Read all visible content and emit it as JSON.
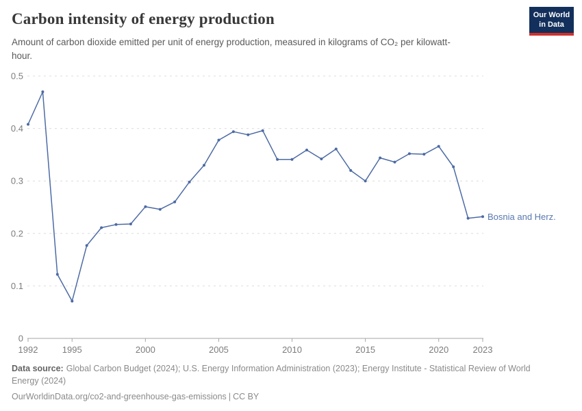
{
  "header": {
    "title": "Carbon intensity of energy production",
    "subtitle": "Amount of carbon dioxide emitted per unit of energy production, measured in kilograms of CO₂ per kilowatt-hour.",
    "logo": {
      "line1": "Our World",
      "line2": "in Data"
    }
  },
  "chart_data": {
    "type": "line",
    "title": "Carbon intensity of energy production",
    "xlabel": "",
    "ylabel": "kilograms of CO₂ per kilowatt-hour",
    "xlim": [
      1992,
      2023
    ],
    "ylim": [
      0,
      0.5
    ],
    "grid": "horizontal dashed",
    "legend_position": "end-of-line label",
    "xticks": [
      1992,
      1995,
      2000,
      2005,
      2010,
      2015,
      2020,
      2023
    ],
    "yticks": [
      0,
      0.1,
      0.2,
      0.3,
      0.4,
      0.5
    ],
    "ytick_labels": [
      "0",
      "0.1",
      "0.2",
      "0.3",
      "0.4",
      "0.5"
    ],
    "series": [
      {
        "name": "Bosnia and Herz.",
        "color": "#4c6aa4",
        "x": [
          1992,
          1993,
          1994,
          1995,
          1996,
          1997,
          1998,
          1999,
          2000,
          2001,
          2002,
          2003,
          2004,
          2005,
          2006,
          2007,
          2008,
          2009,
          2010,
          2011,
          2012,
          2013,
          2014,
          2015,
          2016,
          2017,
          2018,
          2019,
          2020,
          2021,
          2022,
          2023
        ],
        "values": [
          0.408,
          0.47,
          0.122,
          0.071,
          0.177,
          0.211,
          0.217,
          0.218,
          0.251,
          0.246,
          0.26,
          0.298,
          0.33,
          0.378,
          0.394,
          0.388,
          0.396,
          0.341,
          0.341,
          0.359,
          0.342,
          0.361,
          0.32,
          0.3,
          0.344,
          0.336,
          0.352,
          0.351,
          0.366,
          0.327,
          0.229,
          0.232
        ]
      }
    ]
  },
  "colors": {
    "line": "#4c6aa4",
    "series_label": "#5878b0",
    "grid": "#dcdcdc",
    "axis_line": "#a6a6a6",
    "axis_text": "#7c7c7c",
    "logo_navy": "#12305b",
    "logo_red": "#d0312d"
  },
  "footer": {
    "source_label": "Data source:",
    "sources": "Global Carbon Budget (2024); U.S. Energy Information Administration (2023); Energy Institute - Statistical Review of World Energy (2024)",
    "url": "OurWorldinData.org/co2-and-greenhouse-gas-emissions",
    "separator": "|",
    "license": "CC BY"
  }
}
